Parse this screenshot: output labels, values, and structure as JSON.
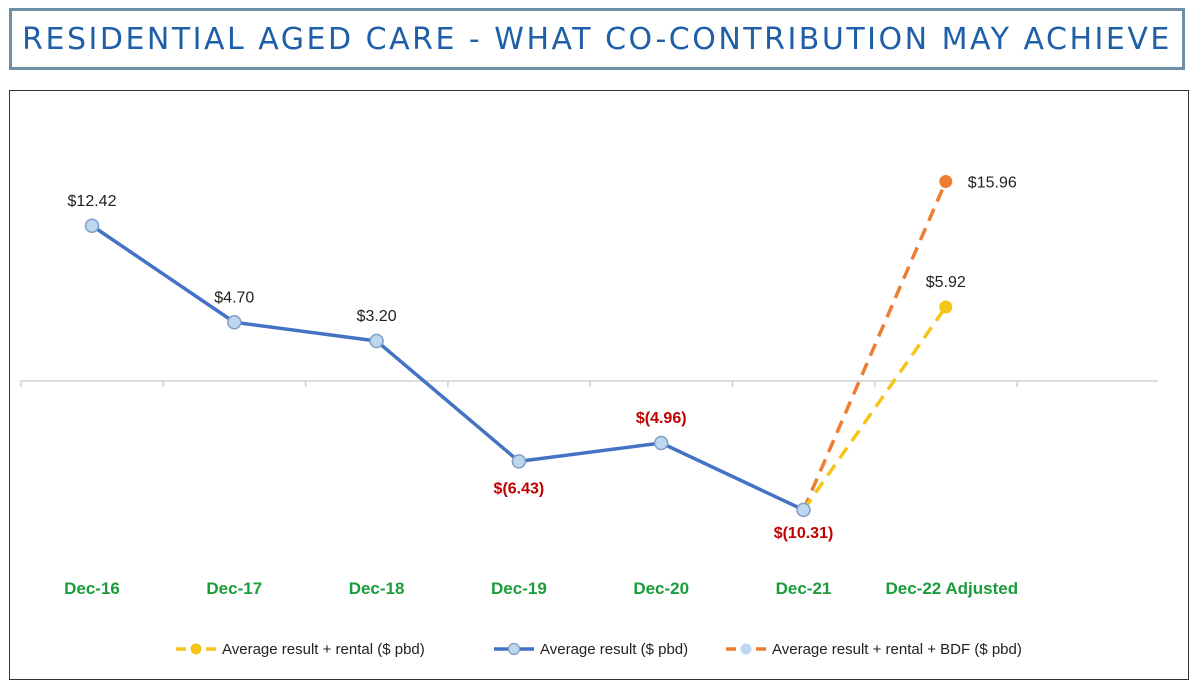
{
  "title": "RESIDENTIAL AGED CARE - WHAT CO-CONTRIBUTION MAY ACHIEVE",
  "colors": {
    "title": "#1f5fa8",
    "main_series": "#4472c4",
    "marker_fill": "#bdd7ee",
    "rental_series": "#f5c518",
    "bdf_series": "#ed7d31",
    "negative_label": "#c00000",
    "positive_label": "#222222",
    "category_label": "#1a9c3a"
  },
  "chart_data": {
    "type": "line",
    "categories": [
      "Dec-16",
      "Dec-17",
      "Dec-18",
      "Dec-19",
      "Dec-20",
      "Dec-21",
      "Dec-22 Adjusted"
    ],
    "series": [
      {
        "name": "Average result ($ pbd)",
        "style": "solid",
        "values": [
          12.42,
          4.7,
          3.2,
          -6.43,
          -4.96,
          -10.31,
          null
        ],
        "labels": [
          "$12.42",
          "$4.70",
          "$3.20",
          "$(6.43)",
          "$(4.96)",
          "$(10.31)",
          ""
        ]
      },
      {
        "name": "Average result + rental ($ pbd)",
        "style": "dashed",
        "values": [
          null,
          null,
          null,
          null,
          null,
          -10.31,
          5.92
        ],
        "labels": [
          "",
          "",
          "",
          "",
          "",
          "",
          "$5.92"
        ]
      },
      {
        "name": "Average result + rental + BDF ($ pbd)",
        "style": "dashed",
        "values": [
          null,
          null,
          null,
          null,
          null,
          -10.31,
          15.96
        ],
        "labels": [
          "",
          "",
          "",
          "",
          "",
          "",
          "$15.96"
        ]
      }
    ],
    "ylim": [
      -15,
      17
    ],
    "grid": false,
    "legend_position": "bottom",
    "xlabel": "",
    "ylabel": ""
  }
}
